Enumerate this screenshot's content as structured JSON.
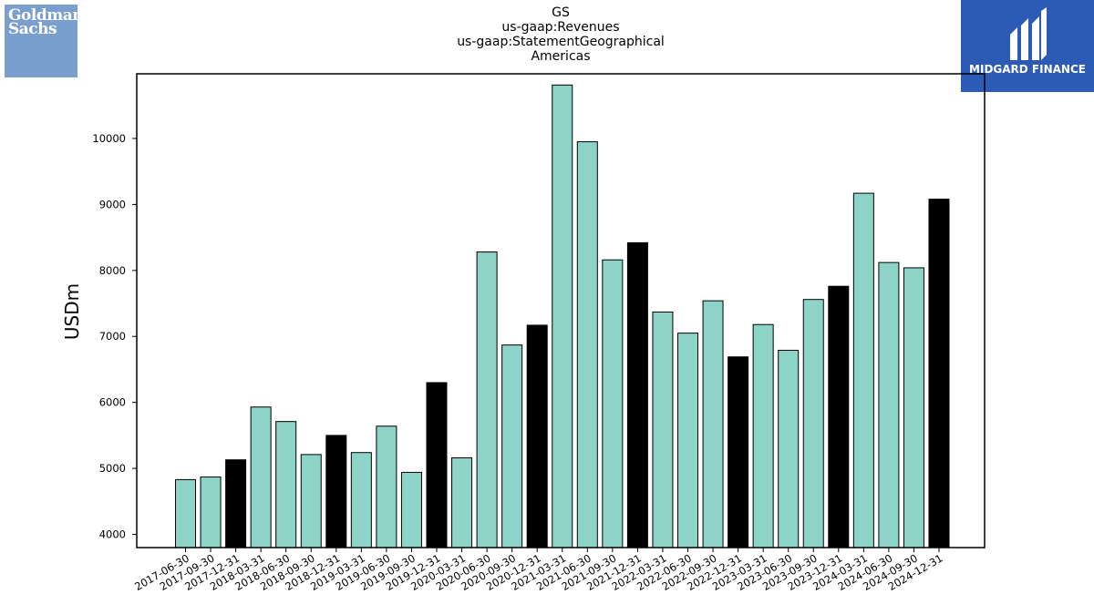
{
  "title_lines": [
    "GS",
    "us-gaap:Revenues",
    "us-gaap:StatementGeographical",
    "Americas"
  ],
  "logos": {
    "left_text": [
      "Goldman",
      "Sachs"
    ],
    "right_text": "MIDGARD FINANCE"
  },
  "colors": {
    "bar_normal": "#8dd3c7",
    "bar_highlight": "#000000",
    "logo_left_bg": "#7a9fcf",
    "logo_right_bg": "#2b5bb5"
  },
  "chart_data": {
    "type": "bar",
    "title": "GS us-gaap:Revenues us-gaap:StatementGeographical Americas",
    "xlabel": "",
    "ylabel": "USDm",
    "ylim": [
      3800,
      10980
    ],
    "yticks": [
      4000,
      5000,
      6000,
      7000,
      8000,
      9000,
      10000
    ],
    "grid": false,
    "categories": [
      "2017-06-30",
      "2017-09-30",
      "2017-12-31",
      "2018-03-31",
      "2018-06-30",
      "2018-09-30",
      "2018-12-31",
      "2019-03-31",
      "2019-06-30",
      "2019-09-30",
      "2019-12-31",
      "2020-03-31",
      "2020-06-30",
      "2020-09-30",
      "2020-12-31",
      "2021-03-31",
      "2021-06-30",
      "2021-09-30",
      "2021-12-31",
      "2022-03-31",
      "2022-06-30",
      "2022-09-30",
      "2022-12-31",
      "2023-03-31",
      "2023-06-30",
      "2023-09-30",
      "2023-12-31",
      "2024-03-31",
      "2024-06-30",
      "2024-09-30",
      "2024-12-31"
    ],
    "values": [
      4830,
      4870,
      5130,
      5930,
      5710,
      5210,
      5500,
      5240,
      5640,
      4940,
      6300,
      5160,
      8280,
      6870,
      7170,
      10810,
      9950,
      8160,
      8420,
      7370,
      7050,
      7540,
      6690,
      7180,
      6790,
      7560,
      7760,
      9170,
      8120,
      8040,
      9080
    ],
    "highlight": [
      false,
      false,
      true,
      false,
      false,
      false,
      true,
      false,
      false,
      false,
      true,
      false,
      false,
      false,
      true,
      false,
      false,
      false,
      true,
      false,
      false,
      false,
      true,
      false,
      false,
      false,
      true,
      false,
      false,
      false,
      true
    ]
  }
}
